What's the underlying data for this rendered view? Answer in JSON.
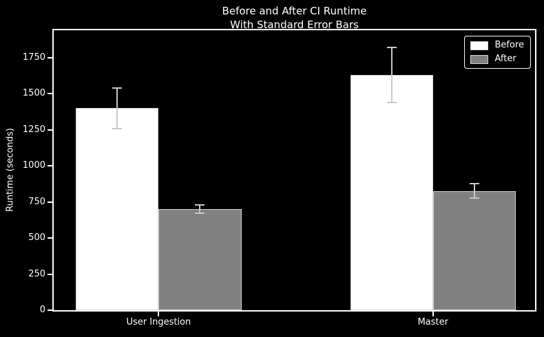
{
  "chart_data": {
    "type": "bar",
    "title": "Before and After CI Runtime\nWith Standard Error Bars",
    "categories": [
      "User Ingestion",
      "Master"
    ],
    "series": [
      {
        "name": "Before",
        "color": "#ffffff",
        "values": [
          1400,
          1630
        ],
        "errors": [
          140,
          190
        ]
      },
      {
        "name": "After",
        "color": "#808080",
        "values": [
          700,
          825
        ],
        "errors": [
          30,
          50
        ]
      }
    ],
    "xlabel": "",
    "ylabel": "Runtime (seconds)",
    "ylim": [
      0,
      1940
    ],
    "yticks": [
      0,
      250,
      500,
      750,
      1000,
      1250,
      1500,
      1750
    ],
    "grid": false,
    "error_bars": true,
    "legend": {
      "position": "upper right",
      "labels": [
        "Before",
        "After"
      ]
    },
    "colors": {
      "background": "#000000",
      "text": "#ffffff",
      "spine": "#ffffff",
      "bar_edge": "#d4d4d4",
      "error_bar": "#c9c9c9"
    }
  }
}
